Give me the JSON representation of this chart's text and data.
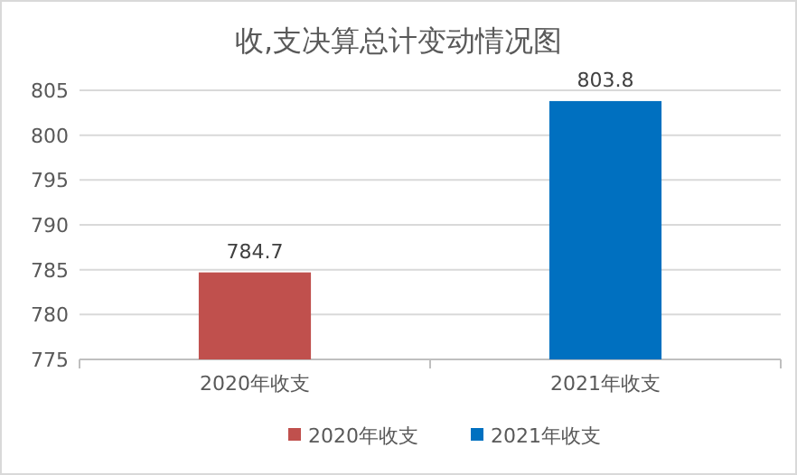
{
  "chart_data": {
    "type": "bar",
    "title": "收,支决算总计变动情况图",
    "categories": [
      "2020年收支",
      "2021年收支"
    ],
    "series": [
      {
        "name": "2020年收支",
        "color": "#c0504d",
        "values": [
          784.7,
          null
        ]
      },
      {
        "name": "2021年收支",
        "color": "#0070c0",
        "values": [
          null,
          803.8
        ]
      }
    ],
    "ylim": [
      775,
      805
    ],
    "yticks": [
      775,
      780,
      785,
      790,
      795,
      800,
      805
    ],
    "grid": "y",
    "data_labels": true,
    "legend": "bottom"
  }
}
